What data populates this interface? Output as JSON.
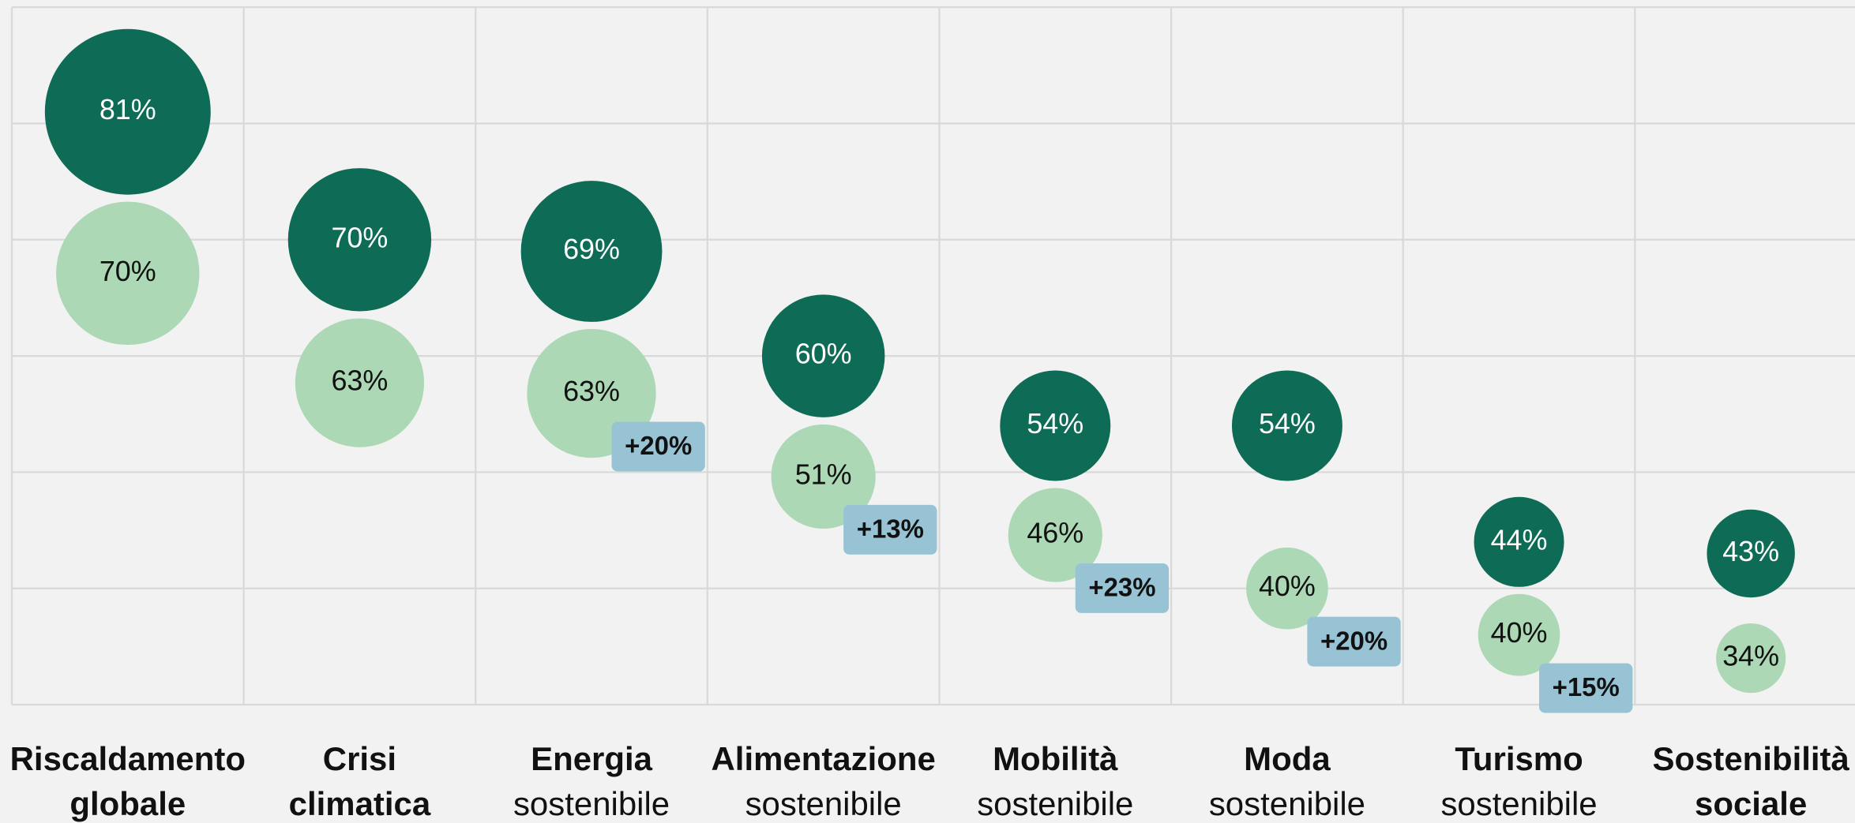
{
  "chart_data": {
    "type": "bubble",
    "categories": [
      [
        "Riscaldamento",
        "globale"
      ],
      [
        "Crisi",
        "climatica"
      ],
      [
        "Energia",
        "sostenibile"
      ],
      [
        "Alimentazione",
        "sostenibile"
      ],
      [
        "Mobilità",
        "sostenibile"
      ],
      [
        "Moda",
        "sostenibile"
      ],
      [
        "Turismo",
        "sostenibile"
      ],
      [
        "Sostenibilità",
        "sociale"
      ]
    ],
    "category_bold": [
      [
        true,
        true
      ],
      [
        true,
        true
      ],
      [
        true,
        false
      ],
      [
        true,
        false
      ],
      [
        true,
        false
      ],
      [
        true,
        false
      ],
      [
        true,
        false
      ],
      [
        true,
        true
      ]
    ],
    "series": [
      {
        "color": "#0e6b55",
        "text_color": "#ffffff",
        "values": [
          81,
          70,
          69,
          60,
          54,
          54,
          44,
          43
        ],
        "value_labels": [
          "81%",
          "70%",
          "69%",
          "60%",
          "54%",
          "54%",
          "44%",
          "43%"
        ]
      },
      {
        "color": "#acd8b5",
        "text_color": "#111111",
        "values": [
          70,
          63,
          63,
          51,
          46,
          40,
          40,
          34
        ],
        "value_labels": [
          "70%",
          "63%",
          "63%",
          "51%",
          "46%",
          "40%",
          "40%",
          "34%"
        ]
      }
    ],
    "badges": [
      null,
      null,
      "+20%",
      "+13%",
      "+23%",
      "+20%",
      "+15%",
      null
    ],
    "badge_color": "#98c3d4",
    "ylim": [
      30,
      90
    ],
    "yticks": [
      30,
      40,
      50,
      60,
      70,
      80,
      90
    ],
    "grid": true
  }
}
